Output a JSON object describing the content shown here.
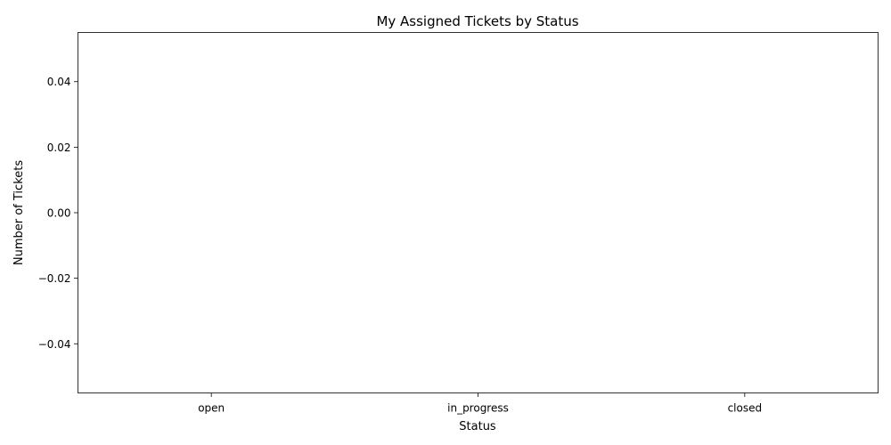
{
  "chart_data": {
    "type": "bar",
    "title": "My Assigned Tickets by Status",
    "xlabel": "Status",
    "ylabel": "Number of Tickets",
    "categories": [
      "open",
      "in_progress",
      "closed"
    ],
    "values": [
      0,
      0,
      0
    ],
    "ylim": [
      -0.055,
      0.055
    ],
    "yticks": [
      -0.04,
      -0.02,
      0.0,
      0.02,
      0.04
    ],
    "ytick_labels": [
      "−0.04",
      "−0.02",
      "0.00",
      "0.02",
      "0.04"
    ],
    "grid": false,
    "legend": "none"
  }
}
